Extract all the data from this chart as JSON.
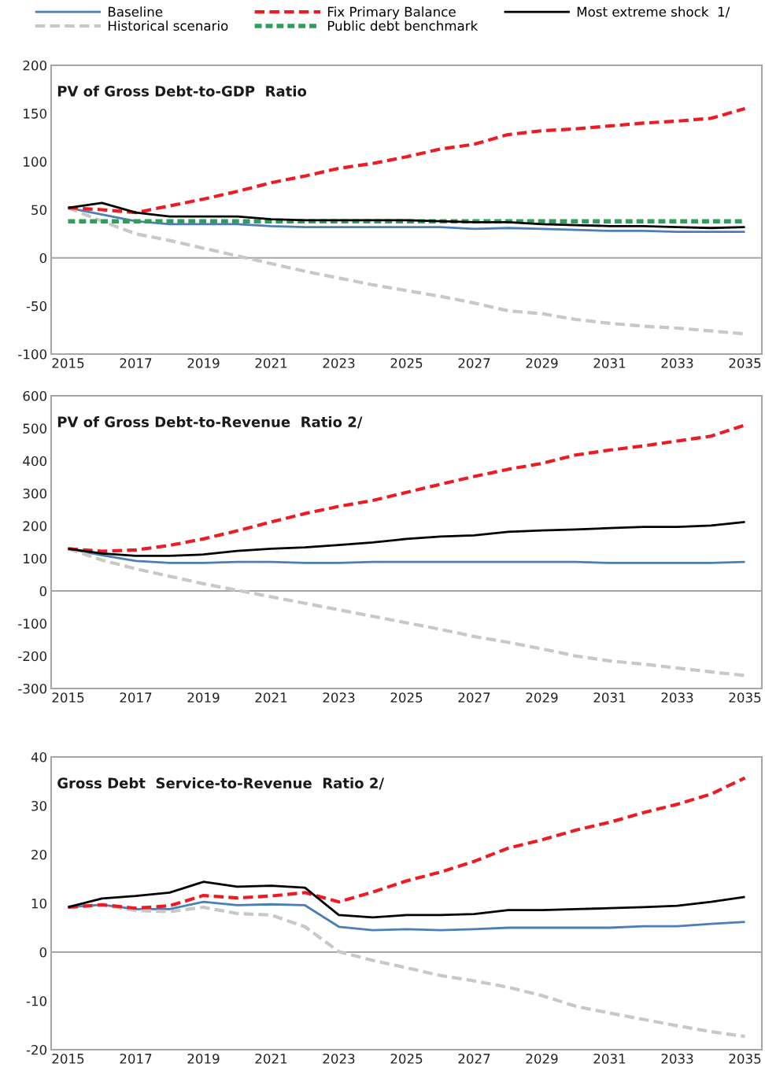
{
  "chart_data": [
    {
      "type": "line",
      "title": "PV of Gross Debt-to-GDP  Ratio",
      "legend": "top",
      "categories": [
        "2015",
        null,
        "2017",
        null,
        "2019",
        null,
        "2021",
        null,
        "2023",
        null,
        "2025",
        null,
        "2027",
        null,
        "2029",
        null,
        "2031",
        null,
        "2033",
        null,
        "2035"
      ],
      "ylim": [
        -100,
        200
      ],
      "yticks": [
        -100,
        -50,
        0,
        50,
        100,
        150,
        200
      ],
      "grid": false,
      "ref_lines": [
        {
          "axis": "y",
          "value": 0,
          "color": "#a6a6a6",
          "line_style": "solid"
        }
      ],
      "series": [
        {
          "name": "Baseline",
          "color": "#4a7fb5",
          "line_style": "solid",
          "values": [
            52,
            45,
            38,
            35,
            35,
            35,
            33,
            32,
            32,
            32,
            32,
            32,
            30,
            31,
            30,
            29,
            28,
            28,
            27,
            27,
            27
          ]
        },
        {
          "name": "Historical scenario",
          "color": "#c8c8c8",
          "line_style": "dashed",
          "values": [
            52,
            38,
            25,
            18,
            10,
            2,
            -6,
            -14,
            -21,
            -28,
            -34,
            -40,
            -47,
            -55,
            -58,
            -64,
            -68,
            -71,
            -73,
            -76,
            -79
          ]
        },
        {
          "name": "Fix Primary Balance",
          "color": "#ed1c24",
          "line_style": "dashed",
          "values": [
            52,
            50,
            47,
            54,
            61,
            69,
            78,
            85,
            93,
            98,
            105,
            113,
            118,
            128,
            132,
            134,
            137,
            140,
            142,
            145,
            155
          ]
        },
        {
          "name": "Public debt benchmark",
          "color": "#2e9e5b",
          "line_style": "dotted",
          "values": [
            38,
            38,
            38,
            38,
            38,
            38,
            38,
            38,
            38,
            38,
            38,
            38,
            38,
            38,
            38,
            38,
            38,
            38,
            38,
            38,
            38
          ]
        },
        {
          "name": "Most extreme shock  1/",
          "color": "#000000",
          "line_style": "solid",
          "values": [
            52,
            57,
            47,
            43,
            43,
            43,
            40,
            39,
            39,
            39,
            39,
            38,
            37,
            37,
            35,
            34,
            33,
            33,
            32,
            31,
            32
          ]
        }
      ]
    },
    {
      "type": "line",
      "title": "PV of Gross Debt-to-Revenue  Ratio 2/",
      "categories": [
        "2015",
        null,
        "2017",
        null,
        "2019",
        null,
        "2021",
        null,
        "2023",
        null,
        "2025",
        null,
        "2027",
        null,
        "2029",
        null,
        "2031",
        null,
        "2033",
        null,
        "2035"
      ],
      "ylim": [
        -300,
        600
      ],
      "yticks": [
        -300,
        -200,
        -100,
        0,
        100,
        200,
        300,
        400,
        500,
        600
      ],
      "grid": false,
      "ref_lines": [
        {
          "axis": "y",
          "value": 0,
          "color": "#a6a6a6",
          "line_style": "solid"
        }
      ],
      "series": [
        {
          "color": "#4a7fb5",
          "line_style": "solid",
          "values": [
            130,
            110,
            92,
            86,
            86,
            89,
            89,
            86,
            86,
            89,
            89,
            89,
            89,
            89,
            89,
            89,
            86,
            86,
            86,
            86,
            89
          ]
        },
        {
          "color": "#c8c8c8",
          "line_style": "dashed",
          "values": [
            130,
            95,
            68,
            45,
            22,
            2,
            -18,
            -38,
            -58,
            -78,
            -98,
            -118,
            -140,
            -158,
            -178,
            -200,
            -215,
            -225,
            -237,
            -249,
            -260
          ]
        },
        {
          "color": "#ed1c24",
          "line_style": "dashed",
          "values": [
            130,
            122,
            126,
            140,
            160,
            185,
            212,
            238,
            260,
            278,
            303,
            328,
            352,
            374,
            392,
            418,
            433,
            446,
            461,
            476,
            510
          ]
        },
        {
          "color": "#000000",
          "line_style": "solid",
          "values": [
            130,
            115,
            108,
            108,
            112,
            123,
            130,
            134,
            141,
            149,
            160,
            167,
            171,
            182,
            186,
            189,
            193,
            197,
            197,
            201,
            212
          ]
        }
      ]
    },
    {
      "type": "line",
      "title": "Gross Debt  Service-to-Revenue  Ratio 2/",
      "categories": [
        "2015",
        null,
        "2017",
        null,
        "2019",
        null,
        "2021",
        null,
        "2023",
        null,
        "2025",
        null,
        "2027",
        null,
        "2029",
        null,
        "2031",
        null,
        "2033",
        null,
        "2035"
      ],
      "ylim": [
        -20,
        40
      ],
      "yticks": [
        -20,
        -10,
        0,
        10,
        20,
        30,
        40
      ],
      "grid": false,
      "ref_lines": [
        {
          "axis": "y",
          "value": 0,
          "color": "#a6a6a6",
          "line_style": "solid"
        }
      ],
      "series": [
        {
          "color": "#4a7fb5",
          "line_style": "solid",
          "values": [
            9.2,
            9.7,
            8.8,
            8.8,
            10.3,
            9.6,
            9.8,
            9.6,
            5.2,
            4.5,
            4.7,
            4.5,
            4.7,
            5.0,
            5.0,
            5.0,
            5.0,
            5.3,
            5.3,
            5.8,
            6.2
          ]
        },
        {
          "color": "#c8c8c8",
          "line_style": "dashed",
          "values": [
            9.2,
            9.7,
            8.5,
            8.3,
            9.2,
            7.9,
            7.6,
            5.2,
            0.1,
            -1.7,
            -3.2,
            -4.8,
            -5.9,
            -7.2,
            -8.9,
            -11.1,
            -12.5,
            -13.8,
            -15.1,
            -16.3,
            -17.3
          ]
        },
        {
          "color": "#ed1c24",
          "line_style": "dashed",
          "values": [
            9.2,
            9.7,
            9.0,
            9.5,
            11.6,
            11.1,
            11.5,
            12.2,
            10.3,
            12.3,
            14.6,
            16.4,
            18.6,
            21.3,
            23.0,
            25.0,
            26.6,
            28.6,
            30.3,
            32.4,
            35.7
          ]
        },
        {
          "color": "#000000",
          "line_style": "solid",
          "values": [
            9.2,
            11.0,
            11.5,
            12.2,
            14.4,
            13.4,
            13.6,
            13.2,
            7.6,
            7.1,
            7.6,
            7.6,
            7.8,
            8.6,
            8.6,
            8.8,
            9.0,
            9.2,
            9.5,
            10.3,
            11.3
          ]
        }
      ]
    }
  ]
}
